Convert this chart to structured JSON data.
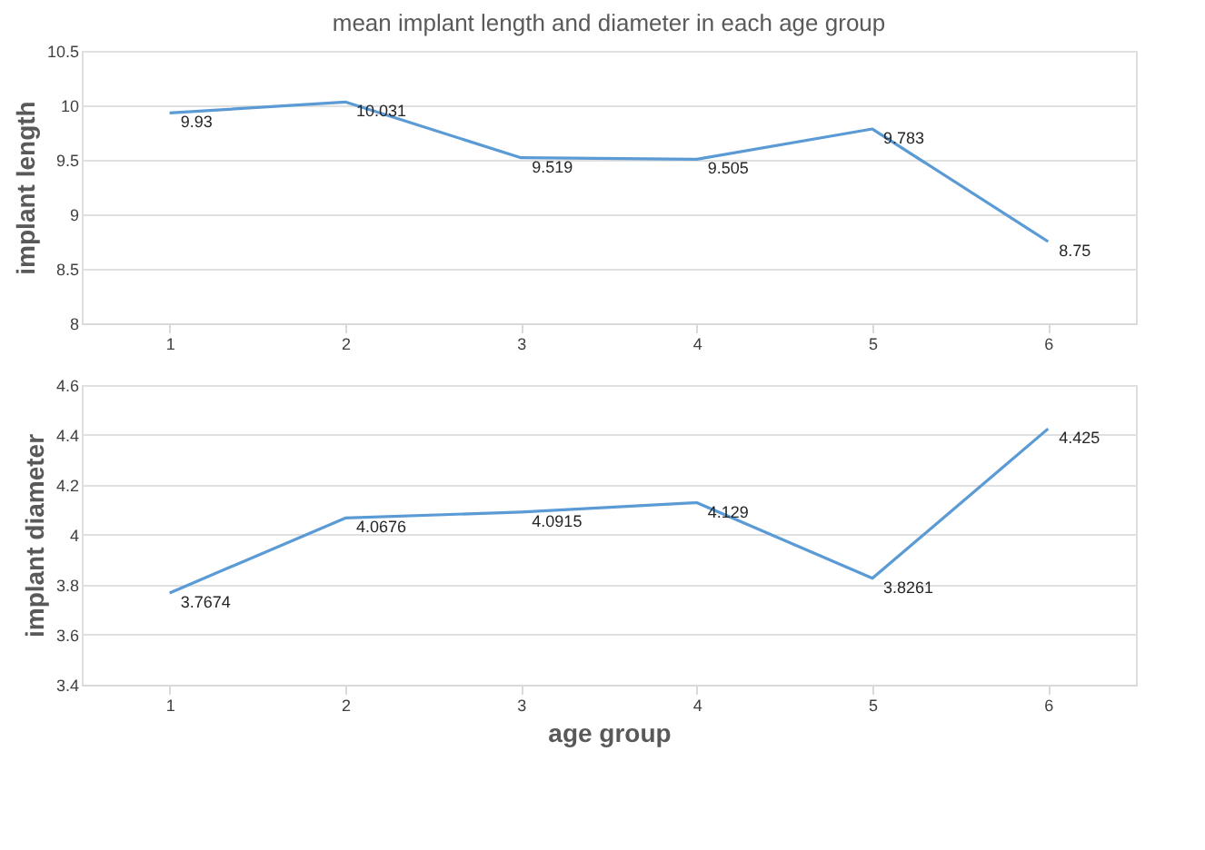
{
  "chart_data": [
    {
      "type": "line",
      "title": "mean implant length and diameter in each age group",
      "ylabel": "implant length",
      "categories": [
        "1",
        "2",
        "3",
        "4",
        "5",
        "6"
      ],
      "series": [
        {
          "color": "#5b9bd5",
          "values": [
            9.93,
            10.031,
            9.519,
            9.505,
            9.783,
            8.75
          ]
        }
      ],
      "ylim": [
        8,
        10.5
      ],
      "yticks": [
        8,
        8.5,
        9,
        9.5,
        10,
        10.5
      ],
      "grid": "y",
      "data_labels": true,
      "legend": false,
      "marker": "none",
      "line_style": "solid"
    },
    {
      "type": "line",
      "xlabel": "age group",
      "ylabel": "implant diameter",
      "categories": [
        "1",
        "2",
        "3",
        "4",
        "5",
        "6"
      ],
      "series": [
        {
          "color": "#5b9bd5",
          "values": [
            3.7674,
            4.0676,
            4.0915,
            4.129,
            3.8261,
            4.425
          ]
        }
      ],
      "ylim": [
        3.4,
        4.6
      ],
      "yticks": [
        3.4,
        3.6,
        3.8,
        4,
        4.2,
        4.4,
        4.6
      ],
      "grid": "y",
      "data_labels": true,
      "legend": false,
      "marker": "none",
      "line_style": "solid"
    }
  ]
}
